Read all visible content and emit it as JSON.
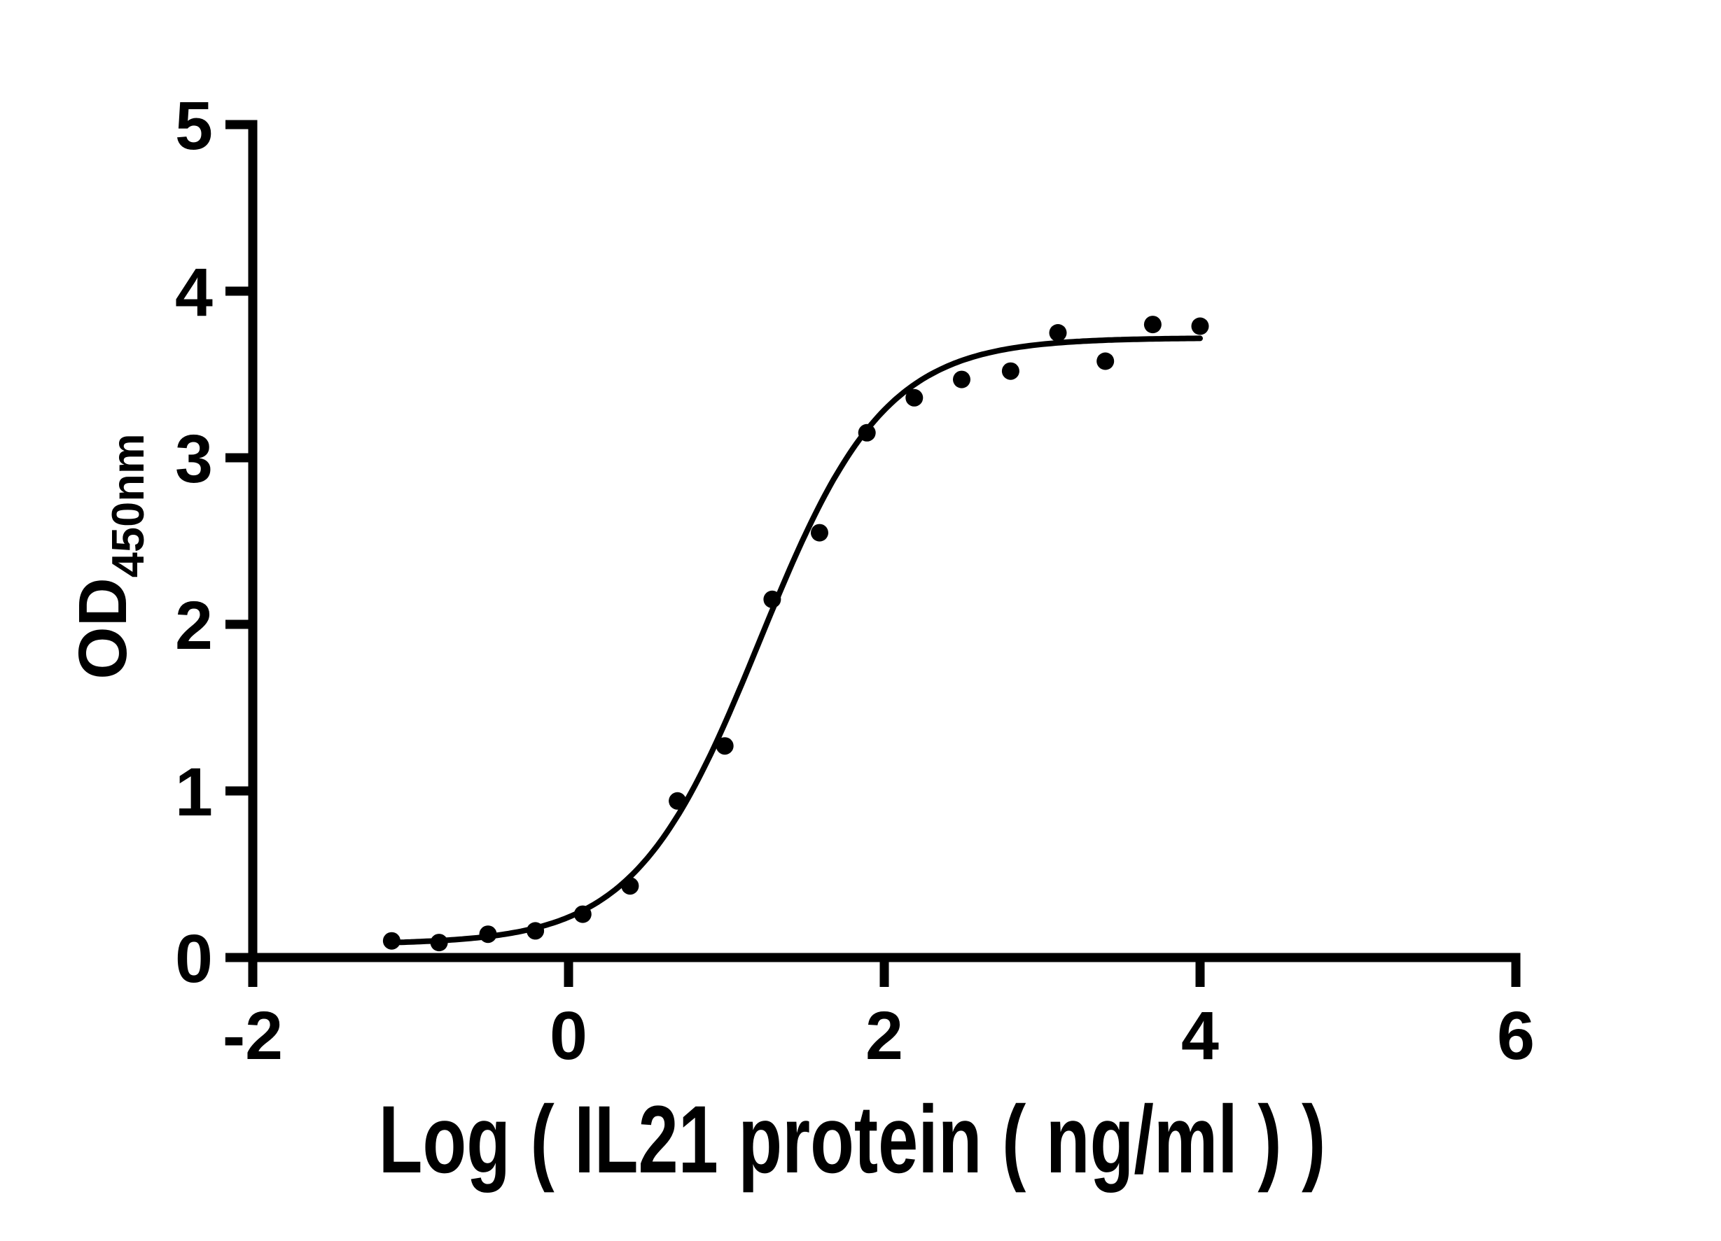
{
  "page": {
    "background_color": "#ffffff",
    "ink_color": "#000000"
  },
  "chart_data": {
    "type": "scatter",
    "title": "",
    "xlabel": "Log ( IL21 protein ( ng/ml )   )",
    "ylabel_main": "OD",
    "ylabel_subscript": "450nm",
    "xlim": [
      -2,
      6
    ],
    "ylim": [
      0,
      5
    ],
    "x_ticks": [
      -2,
      0,
      2,
      4,
      6
    ],
    "x_tick_labels": [
      "-2",
      "0",
      "2",
      "4",
      "6"
    ],
    "y_ticks": [
      0,
      1,
      2,
      3,
      4,
      5
    ],
    "y_tick_labels": [
      "0",
      "1",
      "2",
      "3",
      "4",
      "5"
    ],
    "grid": false,
    "legend": "none",
    "marker_shape": "circle",
    "marker_color": "#000000",
    "curve_color": "#000000",
    "axis_color": "#000000",
    "points": {
      "log_x": [
        -1.12,
        -0.82,
        -0.51,
        -0.21,
        0.09,
        0.39,
        0.69,
        0.99,
        1.29,
        1.59,
        1.89,
        2.19,
        2.49,
        2.8,
        3.1,
        3.4,
        3.7,
        4.0
      ],
      "od": [
        0.1,
        0.09,
        0.14,
        0.16,
        0.26,
        0.43,
        0.94,
        1.27,
        2.15,
        2.55,
        3.15,
        3.36,
        3.47,
        3.52,
        3.75,
        3.58,
        3.8,
        3.79
      ]
    },
    "fit_curve": {
      "model": "four_parameter_logistic",
      "bottom": 0.08,
      "top": 3.72,
      "log_ec50": 1.21,
      "hill_slope": 1.1,
      "x_range": [
        -1.12,
        4.0
      ]
    }
  }
}
